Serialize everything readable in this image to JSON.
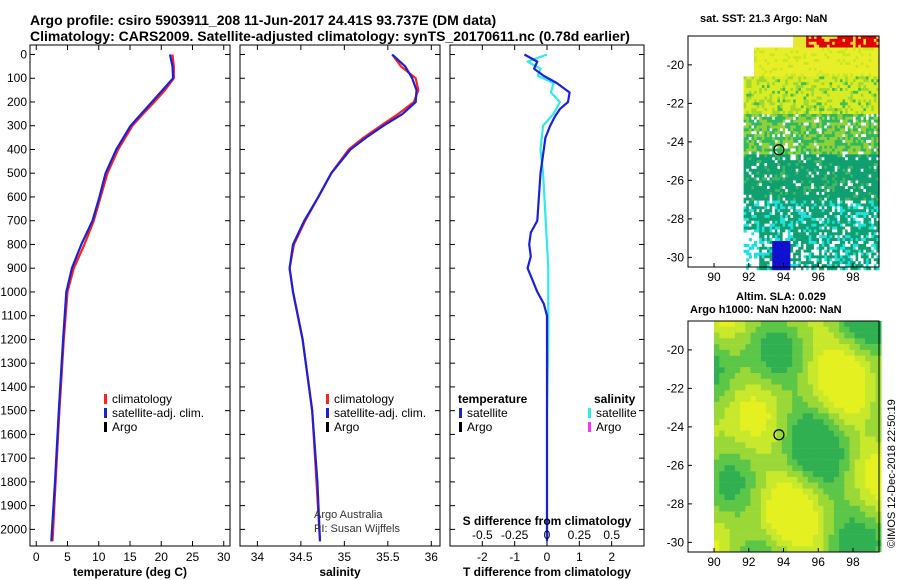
{
  "title_line1": "Argo profile: csiro 5903911_208 11-Jun-2017 24.41S 93.737E (DM data)",
  "title_line2": "Climatology: CARS2009. Satellite-adjusted climatology: synTS_20170611.nc (0.78d earlier)",
  "sst_header": "sat. SST: 21.3 Argo: NaN",
  "alt_header1": "Altim. SLA: 0.029",
  "alt_header2": "Argo h1000: NaN h2000: NaN",
  "credit": "©IMOS 12-Dec-2018 22:50:19",
  "colors": {
    "climatology": "#ff2020",
    "satellite": "#1a22d6",
    "argo": "#000000",
    "sat_salinity": "#30e8f0",
    "argo_salinity": "#ff30ff"
  },
  "chart_data": [
    {
      "type": "line",
      "id": "temperature",
      "xlabel": "temperature (deg C)",
      "ylabel": "",
      "xlim": [
        -1,
        31
      ],
      "ylim": [
        2070,
        -40
      ],
      "xticks": [
        0,
        5,
        10,
        15,
        20,
        25,
        30
      ],
      "yticks": [
        0,
        100,
        200,
        300,
        400,
        500,
        600,
        700,
        800,
        900,
        1000,
        1100,
        1200,
        1300,
        1400,
        1500,
        1600,
        1700,
        1800,
        1900,
        2000
      ],
      "legend": {
        "items": [
          "climatology",
          "satellite-adj. clim.",
          "Argo"
        ]
      },
      "series": [
        {
          "name": "climatology",
          "depth": [
            0,
            50,
            100,
            150,
            200,
            250,
            300,
            400,
            500,
            600,
            700,
            800,
            900,
            1000,
            1200,
            1500,
            1800,
            2050
          ],
          "values": [
            21.8,
            22.0,
            22.0,
            20.6,
            18.9,
            17.1,
            15.4,
            13.1,
            11.4,
            10.3,
            9.2,
            7.7,
            6.0,
            5.0,
            4.4,
            3.7,
            3.1,
            2.6
          ]
        },
        {
          "name": "satellite-adj. clim.",
          "depth": [
            0,
            50,
            100,
            150,
            200,
            250,
            300,
            400,
            500,
            600,
            700,
            800,
            900,
            1000,
            1200,
            1500,
            1800,
            2050
          ],
          "values": [
            21.4,
            21.8,
            21.9,
            20.2,
            18.5,
            16.8,
            15.1,
            12.8,
            11.1,
            10.1,
            9.0,
            7.2,
            5.7,
            4.8,
            4.3,
            3.6,
            3.0,
            2.4
          ]
        },
        {
          "name": "Argo",
          "depth": [],
          "values": []
        }
      ]
    },
    {
      "type": "line",
      "id": "salinity",
      "xlabel": "salinity",
      "ylabel": "",
      "xlim": [
        33.8,
        36.1
      ],
      "ylim": [
        2070,
        -40
      ],
      "xticks": [
        34,
        34.5,
        35,
        35.5,
        36
      ],
      "xticklabels": [
        "34",
        "34.5",
        "35",
        "35.5",
        "36"
      ],
      "legend": {
        "items": [
          "climatology",
          "satellite-adj. clim.",
          "Argo"
        ]
      },
      "annotation1": "Argo Australia",
      "annotation2": "PI: Susan Wijffels",
      "series": [
        {
          "name": "climatology",
          "depth": [
            0,
            50,
            100,
            150,
            200,
            250,
            300,
            350,
            400,
            500,
            600,
            700,
            800,
            900,
            1000,
            1200,
            1500,
            1800,
            2050
          ],
          "values": [
            35.55,
            35.65,
            35.82,
            35.85,
            35.8,
            35.62,
            35.42,
            35.22,
            35.05,
            34.85,
            34.7,
            34.55,
            34.42,
            34.37,
            34.41,
            34.52,
            34.63,
            34.68,
            34.72
          ]
        },
        {
          "name": "satellite-adj. clim.",
          "depth": [
            0,
            50,
            100,
            150,
            200,
            250,
            300,
            350,
            400,
            500,
            600,
            700,
            800,
            900,
            1000,
            1200,
            1500,
            1800,
            2050
          ],
          "values": [
            35.55,
            35.7,
            35.78,
            35.83,
            35.82,
            35.67,
            35.45,
            35.25,
            35.07,
            34.85,
            34.7,
            34.54,
            34.41,
            34.37,
            34.41,
            34.52,
            34.63,
            34.69,
            34.72
          ]
        },
        {
          "name": "Argo",
          "depth": [],
          "values": []
        }
      ]
    },
    {
      "type": "line",
      "id": "difference",
      "xlabel": "T difference from climatology",
      "top_axis_label": "S difference from climatology",
      "xlim": [
        -3,
        3
      ],
      "ylim": [
        2070,
        -40
      ],
      "xticks": [
        -2,
        -1,
        0,
        1,
        2
      ],
      "s_ticks": [
        -0.5,
        -0.25,
        0,
        0.25,
        0.5
      ],
      "s_ticklabels": [
        "-0.5",
        "-0.25",
        "0",
        "0.25",
        "0.5"
      ],
      "legend": {
        "left_title": "temperature",
        "right_title": "salinity",
        "items": [
          "satellite",
          "Argo"
        ]
      },
      "series": [
        {
          "name": "temperature satellite",
          "depth": [
            0,
            30,
            60,
            90,
            120,
            160,
            200,
            230,
            260,
            300,
            350,
            400,
            500,
            600,
            700,
            750,
            800,
            850,
            900,
            950,
            1000,
            1050,
            1100,
            1200,
            1500,
            2050
          ],
          "values": [
            -0.7,
            -0.3,
            -0.4,
            -0.1,
            0.3,
            0.7,
            0.65,
            0.4,
            0.25,
            0.1,
            -0.05,
            -0.1,
            -0.2,
            -0.25,
            -0.3,
            -0.5,
            -0.55,
            -0.5,
            -0.6,
            -0.45,
            -0.3,
            -0.1,
            0.0,
            0.0,
            0.0,
            0.0
          ]
        },
        {
          "name": "salinity satellite",
          "depth": [
            0,
            30,
            60,
            90,
            120,
            160,
            200,
            250,
            300,
            400,
            500,
            600,
            700,
            800,
            900,
            1000,
            1200,
            1500,
            2050
          ],
          "values": [
            0.0,
            -0.15,
            -0.05,
            -0.07,
            0.05,
            0.03,
            0.1,
            0.05,
            -0.03,
            -0.05,
            -0.03,
            -0.02,
            -0.01,
            0.0,
            0.01,
            0.01,
            0.01,
            0.0,
            0.0
          ]
        }
      ]
    },
    {
      "type": "heatmap",
      "id": "sat-sst-map",
      "title": "sat. SST: 21.3 Argo: NaN",
      "xlim": [
        88.5,
        99.5
      ],
      "ylim": [
        -30.5,
        -18.5
      ],
      "xticks": [
        90,
        92,
        94,
        96,
        98
      ],
      "yticks": [
        -20,
        -22,
        -24,
        -26,
        -28,
        -30
      ],
      "argo_position": {
        "lon": 93.737,
        "lat": -24.41
      }
    },
    {
      "type": "heatmap",
      "id": "altim-sla-map",
      "title": "Altim. SLA: 0.029",
      "xlim": [
        88.5,
        99.5
      ],
      "ylim": [
        -30.5,
        -18.5
      ],
      "xticks": [
        90,
        92,
        94,
        96,
        98
      ],
      "yticks": [
        -20,
        -22,
        -24,
        -26,
        -28,
        -30
      ],
      "argo_position": {
        "lon": 93.737,
        "lat": -24.41
      }
    }
  ]
}
